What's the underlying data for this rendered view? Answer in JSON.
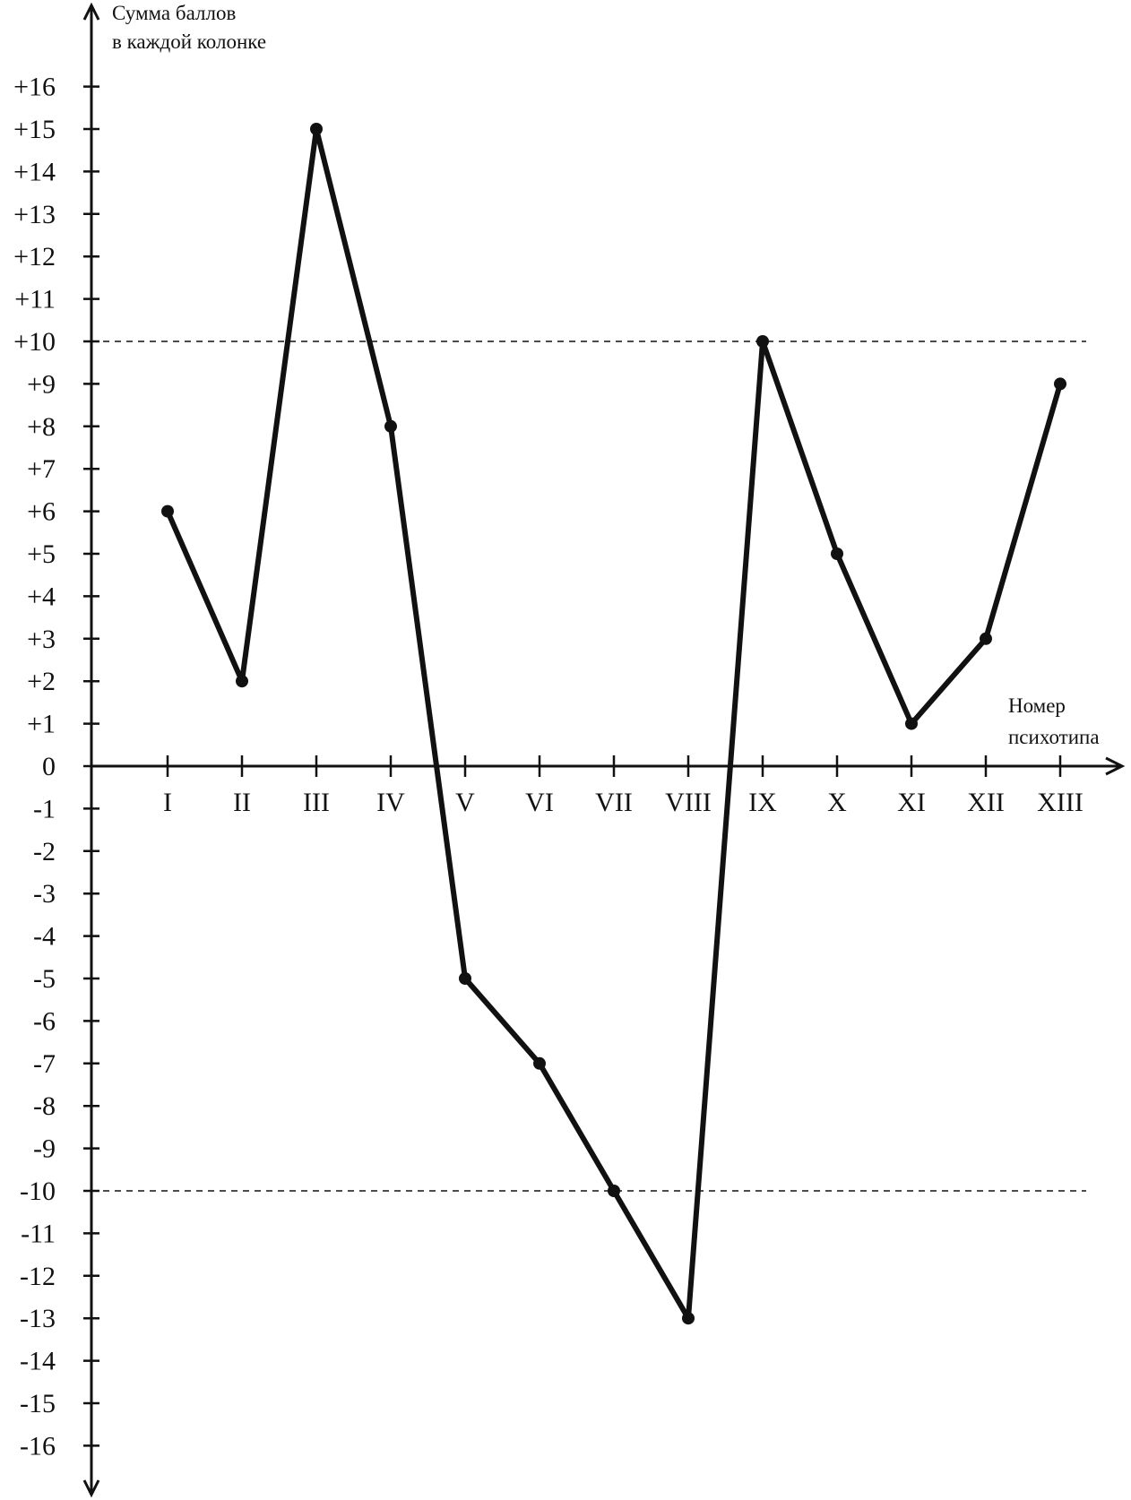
{
  "chart_data": {
    "type": "line",
    "y_axis_title": [
      "Сумма баллов",
      "в каждой колонке"
    ],
    "x_axis_title": [
      "Номер",
      "психотипа"
    ],
    "categories": [
      "I",
      "II",
      "III",
      "IV",
      "V",
      "VI",
      "VII",
      "VIII",
      "IX",
      "X",
      "XI",
      "XII",
      "XIII"
    ],
    "values": [
      6,
      2,
      15,
      8,
      -5,
      -7,
      -10,
      -13,
      10,
      5,
      1,
      3,
      9
    ],
    "y_ticks": [
      "+16",
      "+15",
      "+14",
      "+13",
      "+12",
      "+11",
      "+10",
      "+9",
      "+8",
      "+7",
      "+6",
      "+5",
      "+4",
      "+3",
      "+2",
      "+1",
      "0",
      "-1",
      "-2",
      "-3",
      "-4",
      "-5",
      "-6",
      "-7",
      "-8",
      "-9",
      "-10",
      "-11",
      "-12",
      "-13",
      "-14",
      "-15",
      "-16"
    ],
    "ylim": [
      -16,
      16
    ],
    "reference_lines": [
      10,
      -10
    ],
    "grid": false,
    "line_color": "#111111"
  }
}
